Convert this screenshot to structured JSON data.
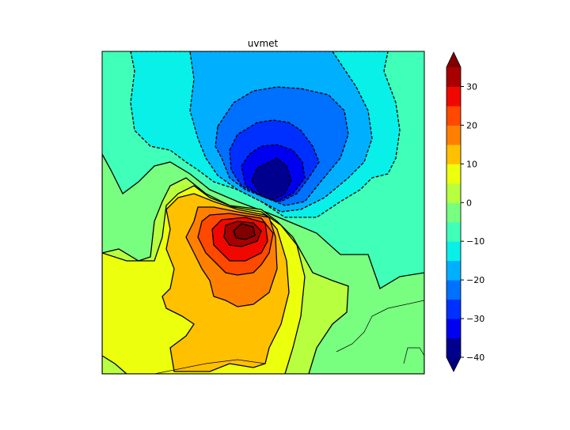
{
  "chart_data": {
    "type": "contour",
    "title": "uvmet",
    "levels": [
      -40,
      -35,
      -30,
      -25,
      -20,
      -15,
      -10,
      -5,
      0,
      5,
      10,
      15,
      20,
      25,
      30,
      35
    ],
    "extend": "both",
    "colors": [
      "#00008f",
      "#0000f0",
      "#0030ff",
      "#0070ff",
      "#00b0ff",
      "#08f0e8",
      "#40ffb8",
      "#78ff80",
      "#b8ff40",
      "#ecff0c",
      "#ffc000",
      "#ff8000",
      "#ff4800",
      "#f00800",
      "#a80000"
    ],
    "extend_colors": {
      "under": "#00007f",
      "over": "#800000"
    },
    "colorbar": {
      "ticks": [
        -40,
        -30,
        -20,
        -10,
        0,
        10,
        20,
        30
      ],
      "tick_labels": [
        "−40",
        "−30",
        "−20",
        "−10",
        "0",
        "10",
        "20",
        "30"
      ],
      "placement": "right"
    },
    "negative_contours": "dashed",
    "positive_contours": "solid"
  }
}
